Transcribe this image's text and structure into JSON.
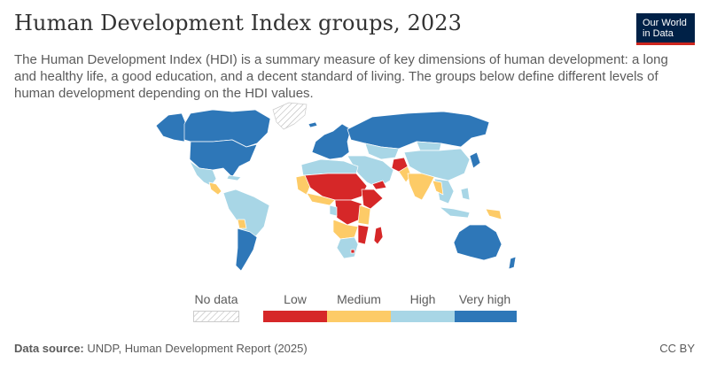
{
  "header": {
    "title": "Human Development Index groups, 2023",
    "subtitle": "The Human Development Index (HDI) is a summary measure of key dimensions of human development: a long and healthy life, a good education, and a decent standard of living. The groups below define different levels of human development depending on the HDI values."
  },
  "logo": {
    "line1": "Our World",
    "line2": "in Data"
  },
  "legend": {
    "no_data": "No data",
    "categories": [
      {
        "label": "Low",
        "color": "#d62728"
      },
      {
        "label": "Medium",
        "color": "#fdcb67"
      },
      {
        "label": "High",
        "color": "#a8d6e6"
      },
      {
        "label": "Very high",
        "color": "#2e77b8"
      }
    ]
  },
  "colors": {
    "very_high": "#2e77b8",
    "high": "#a8d6e6",
    "medium": "#fdcb67",
    "low": "#d62728",
    "border": "#ffffff"
  },
  "footer": {
    "source_label": "Data source:",
    "source_text": "UNDP, Human Development Report (2025)",
    "license": "CC BY"
  }
}
